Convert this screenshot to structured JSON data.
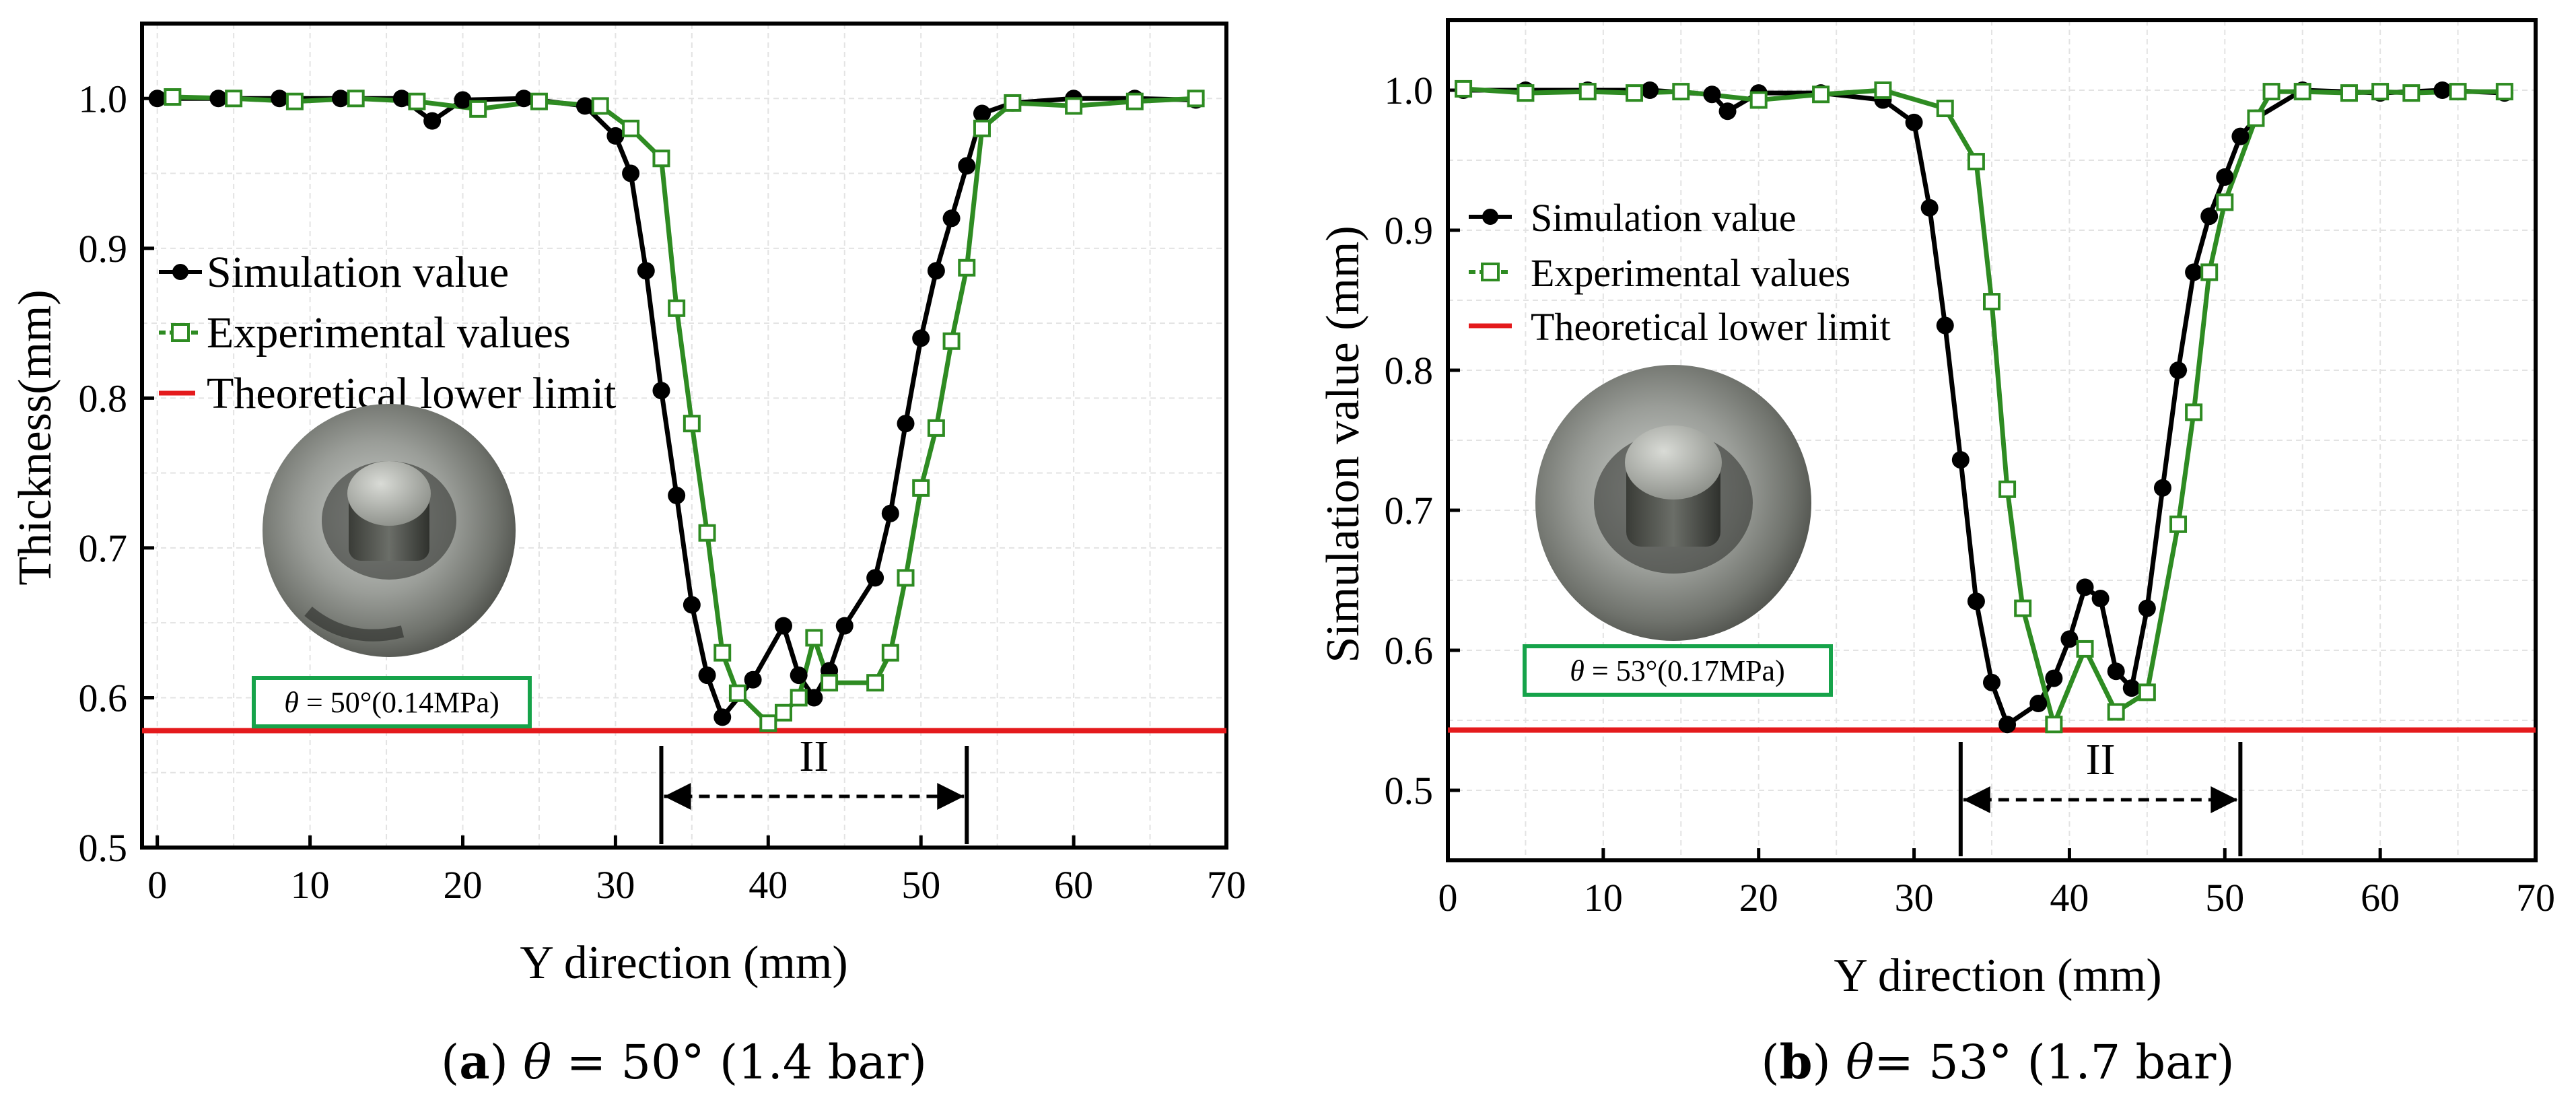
{
  "chart_data": [
    {
      "type": "line",
      "panel_label": "(a)",
      "caption_theta": "θ = 50° (1.4 bar)",
      "xlabel": "Y direction (mm)",
      "ylabel": "Thickness(mm)",
      "xlim": [
        -1,
        70
      ],
      "ylim": [
        0.5,
        1.05
      ],
      "xticks": [
        0,
        10,
        20,
        30,
        40,
        50,
        60,
        70
      ],
      "yticks": [
        0.5,
        0.6,
        0.7,
        0.8,
        0.9,
        1.0
      ],
      "xtick_labels": [
        "0",
        "10",
        "20",
        "30",
        "40",
        "50",
        "60",
        "70"
      ],
      "ytick_labels": [
        "0.5",
        "0.6",
        "0.7",
        "0.8",
        "0.9",
        "1.0"
      ],
      "grid": true,
      "legend_position": "middle-left",
      "series": [
        {
          "name": "Simulation value",
          "color": "#000000",
          "marker": "filled-circle",
          "x": [
            0,
            4,
            8,
            12,
            16,
            18,
            20,
            24,
            28,
            30,
            31,
            32,
            33,
            34,
            35,
            36,
            37,
            39,
            41,
            42,
            43,
            44,
            45,
            47,
            48,
            49,
            50,
            51,
            52,
            53,
            54,
            56,
            60,
            64,
            68
          ],
          "y": [
            1.0,
            1.0,
            1.0,
            1.0,
            1.0,
            0.985,
            0.999,
            1.0,
            0.995,
            0.975,
            0.95,
            0.885,
            0.805,
            0.735,
            0.662,
            0.615,
            0.587,
            0.612,
            0.648,
            0.615,
            0.6,
            0.618,
            0.648,
            0.68,
            0.723,
            0.783,
            0.84,
            0.885,
            0.92,
            0.955,
            0.99,
            0.997,
            1.0,
            1.0,
            0.999
          ]
        },
        {
          "name": "Experimental values",
          "color": "#2e8b22",
          "marker": "open-square",
          "x": [
            1,
            5,
            9,
            13,
            17,
            21,
            25,
            29,
            31,
            33,
            34,
            35,
            36,
            37,
            38,
            40,
            41,
            42,
            43,
            44,
            47,
            48,
            49,
            50,
            51,
            52,
            53,
            54,
            56,
            60,
            64,
            68
          ],
          "y": [
            1.001,
            1.0,
            0.998,
            1.0,
            0.998,
            0.993,
            0.998,
            0.995,
            0.98,
            0.96,
            0.86,
            0.783,
            0.71,
            0.63,
            0.603,
            0.583,
            0.59,
            0.6,
            0.64,
            0.61,
            0.61,
            0.63,
            0.68,
            0.74,
            0.78,
            0.838,
            0.887,
            0.98,
            0.997,
            0.995,
            0.998,
            1.0
          ]
        },
        {
          "name": "Theoretical lower limit",
          "color": "#e41a1c",
          "marker": "none",
          "x": [
            -1,
            70
          ],
          "y": [
            0.578,
            0.578
          ]
        }
      ],
      "zone": {
        "label": "II",
        "x_start": 33,
        "x_end": 53
      },
      "inset_label": "θ = 50°(0.14MPa)",
      "inset_theta": "θ",
      "inset_rest": " = 50°(0.14MPa)"
    },
    {
      "type": "line",
      "panel_label": "(b)",
      "caption_theta": "θ= 53° (1.7 bar)",
      "xlabel": "Y direction (mm)",
      "ylabel": "Simulation value (mm)",
      "xlim": [
        0,
        70
      ],
      "ylim": [
        0.45,
        1.05
      ],
      "xticks": [
        0,
        10,
        20,
        30,
        40,
        50,
        60,
        70
      ],
      "yticks": [
        0.5,
        0.6,
        0.7,
        0.8,
        0.9,
        1.0
      ],
      "xtick_labels": [
        "0",
        "10",
        "20",
        "30",
        "40",
        "50",
        "60",
        "70"
      ],
      "ytick_labels": [
        "0.5",
        "0.6",
        "0.7",
        "0.8",
        "0.9",
        "1.0"
      ],
      "grid": true,
      "legend_position": "middle-left",
      "series": [
        {
          "name": "Simulation value",
          "color": "#000000",
          "marker": "filled-circle",
          "x": [
            1,
            5,
            9,
            13,
            17,
            18,
            20,
            24,
            28,
            30,
            31,
            32,
            33,
            34,
            35,
            36,
            38,
            39,
            40,
            41,
            42,
            43,
            44,
            45,
            46,
            47,
            48,
            49,
            50,
            51,
            52,
            55,
            60,
            64,
            68
          ],
          "y": [
            1.0,
            1.0,
            1.0,
            1.0,
            0.997,
            0.985,
            0.998,
            0.998,
            0.993,
            0.977,
            0.916,
            0.832,
            0.736,
            0.635,
            0.577,
            0.547,
            0.562,
            0.58,
            0.608,
            0.645,
            0.637,
            0.585,
            0.573,
            0.63,
            0.716,
            0.8,
            0.87,
            0.91,
            0.938,
            0.967,
            0.98,
            1.0,
            0.998,
            1.0,
            0.998
          ]
        },
        {
          "name": "Experimental values",
          "color": "#2e8b22",
          "marker": "open-square",
          "x": [
            1,
            5,
            9,
            12,
            15,
            20,
            24,
            28,
            32,
            34,
            35,
            36,
            37,
            39,
            41,
            43,
            45,
            47,
            48,
            49,
            50,
            52,
            53,
            55,
            58,
            60,
            62,
            65,
            68
          ],
          "y": [
            1.001,
            0.998,
            0.999,
            0.998,
            0.999,
            0.993,
            0.997,
            1.0,
            0.987,
            0.949,
            0.849,
            0.715,
            0.63,
            0.547,
            0.601,
            0.556,
            0.57,
            0.69,
            0.77,
            0.87,
            0.92,
            0.98,
            0.999,
            0.999,
            0.998,
            0.999,
            0.998,
            0.999,
            0.999
          ]
        },
        {
          "name": "Theoretical lower limit",
          "color": "#e41a1c",
          "marker": "none",
          "x": [
            0,
            70
          ],
          "y": [
            0.543,
            0.543
          ]
        }
      ],
      "zone": {
        "label": "II",
        "x_start": 33,
        "x_end": 51
      },
      "inset_label": "θ = 53°(0.17MPa)",
      "inset_theta": "θ",
      "inset_rest": " = 53°(0.17MPa)"
    }
  ],
  "captions": {
    "a": {
      "letter": "a",
      "theta": "θ",
      "rest": " = 50° (1.4 bar)"
    },
    "b": {
      "letter": "b",
      "theta": "θ",
      "rest": "= 53° (1.7 bar)"
    }
  },
  "colors": {
    "simulation": "#000000",
    "experimental": "#2e8b22",
    "limit": "#e41a1c",
    "inset_border": "#16a34a"
  }
}
